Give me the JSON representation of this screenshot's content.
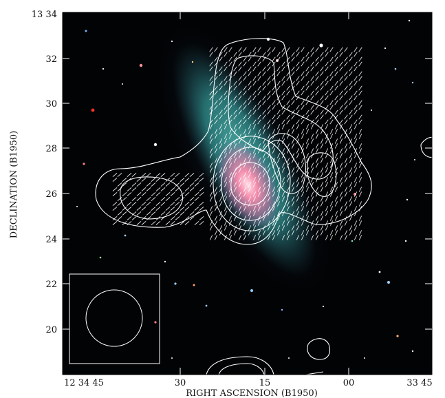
{
  "figure": {
    "x_axis_label": "RIGHT ASCENSION (B1950)",
    "y_axis_label": "DECLINATION (B1950)",
    "x_ticks": [
      "12 34 45",
      "30",
      "15",
      "00",
      "33 45"
    ],
    "y_ticks": [
      "13 34",
      "32",
      "30",
      "28",
      "26",
      "24",
      "22",
      "20"
    ],
    "colors": {
      "background": "#000000",
      "galaxy_disk": "#2f8c8a",
      "galaxy_core": "#ff6f8d",
      "contours": "#ffffff",
      "frame": "#ffffff"
    }
  }
}
